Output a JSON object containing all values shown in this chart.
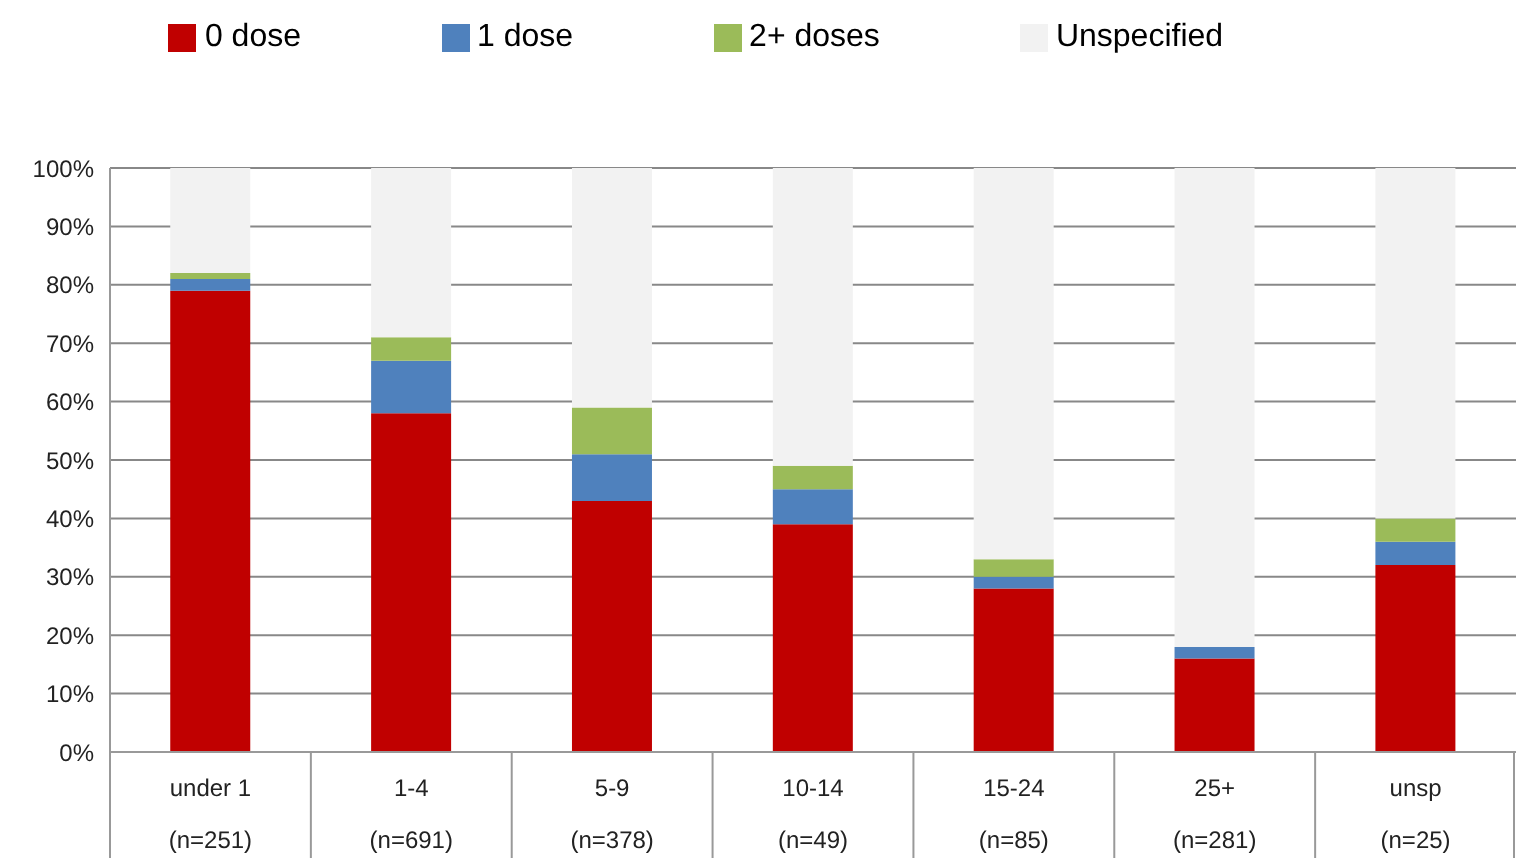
{
  "chart_data": {
    "type": "bar",
    "stacked": true,
    "categories": [
      "under 1\n(n=251)",
      "1-4\n(n=691)",
      "5-9\n(n=378)",
      "10-14\n(n=49)",
      "15-24\n(n=85)",
      "25+\n(n=281)",
      "unsp\n(n=25)"
    ],
    "series": [
      {
        "name": "0 dose",
        "color": "#c00000",
        "values": [
          79,
          58,
          43,
          39,
          28,
          16,
          32
        ]
      },
      {
        "name": "1 dose",
        "color": "#4f81bd",
        "values": [
          2,
          9,
          8,
          6,
          2,
          2,
          4
        ]
      },
      {
        "name": "2+ doses",
        "color": "#9bbb59",
        "values": [
          1,
          4,
          8,
          4,
          3,
          0,
          4
        ]
      },
      {
        "name": "Unspecified",
        "color": "#f2f2f2",
        "values": [
          18,
          29,
          41,
          51,
          67,
          82,
          60
        ]
      }
    ],
    "ylim": [
      0,
      100
    ],
    "yticks": [
      {
        "value": 0,
        "label": "0%"
      },
      {
        "value": 10,
        "label": "10%"
      },
      {
        "value": 20,
        "label": "20%"
      },
      {
        "value": 30,
        "label": "30%"
      },
      {
        "value": 40,
        "label": "40%"
      },
      {
        "value": 50,
        "label": "50%"
      },
      {
        "value": 60,
        "label": "60%"
      },
      {
        "value": 70,
        "label": "70%"
      },
      {
        "value": 80,
        "label": "80%"
      },
      {
        "value": 90,
        "label": "90%"
      },
      {
        "value": 100,
        "label": "100%"
      }
    ],
    "grid": "y",
    "legend": "top"
  }
}
